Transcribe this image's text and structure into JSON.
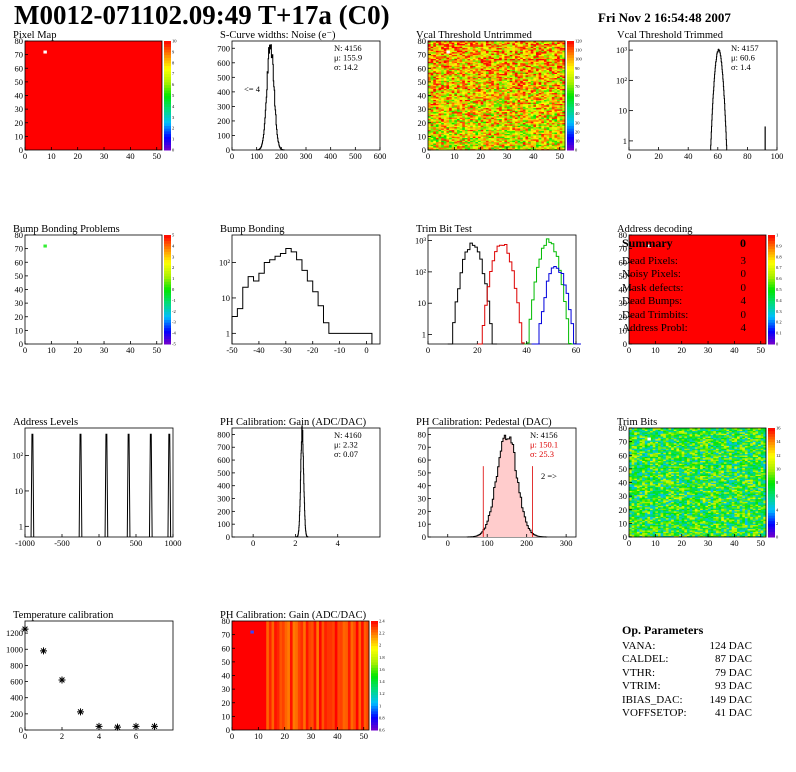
{
  "header": {
    "title": "M0012-071102.09:49 T+17a (C0)",
    "date": "Fri Nov  2 16:54:48 2007"
  },
  "summary": {
    "title": "Summary",
    "value": "0",
    "rows": [
      {
        "label": "Dead Pixels:",
        "value": "3"
      },
      {
        "label": "Noisy Pixels:",
        "value": "0"
      },
      {
        "label": "Mask defects:",
        "value": "0"
      },
      {
        "label": "Dead Bumps:",
        "value": "4"
      },
      {
        "label": "Dead Trimbits:",
        "value": "0"
      },
      {
        "label": "Address Probl:",
        "value": "4"
      }
    ]
  },
  "op_parameters": {
    "title": "Op. Parameters",
    "rows": [
      {
        "label": "VANA:",
        "value": "124 DAC"
      },
      {
        "label": "CALDEL:",
        "value": "87 DAC"
      },
      {
        "label": "VTHR:",
        "value": "79 DAC"
      },
      {
        "label": "VTRIM:",
        "value": "93 DAC"
      },
      {
        "label": "IBIAS_DAC:",
        "value": "149 DAC"
      },
      {
        "label": "VOFFSETOP:",
        "value": "41 DAC"
      }
    ]
  },
  "chart_data": [
    {
      "type": "heatmap",
      "title": "Pixel Map",
      "style": "uniform",
      "xlim": [
        0,
        52
      ],
      "ylim": [
        0,
        80
      ],
      "xticks": [
        0,
        10,
        20,
        30,
        40,
        50
      ],
      "yticks": [
        0,
        10,
        20,
        30,
        40,
        50,
        60,
        70,
        80
      ],
      "zticks": [
        0,
        1,
        2,
        3,
        4,
        5,
        6,
        7,
        8,
        9,
        10
      ],
      "color": "#ff0000",
      "spots": [
        {
          "x": 7,
          "y": 72,
          "color": "#ffffff"
        }
      ]
    },
    {
      "type": "bar",
      "title": "S-Curve widths: Noise (e⁻)",
      "xlim": [
        0,
        600
      ],
      "ylim": [
        0,
        750
      ],
      "xticks": [
        0,
        100,
        200,
        300,
        400,
        500,
        600
      ],
      "yticks": [
        0,
        100,
        200,
        300,
        400,
        500,
        600,
        700
      ],
      "peak": {
        "mean": 155.9,
        "sigma": 14.2,
        "height": 730
      },
      "stats": [
        "N: 4156",
        "μ: 155.9",
        "σ: 14.2"
      ],
      "note": "<= 4"
    },
    {
      "type": "heatmap",
      "title": "Vcal Threshold Untrimmed",
      "style": "noisy",
      "xlim": [
        0,
        52
      ],
      "ylim": [
        0,
        80
      ],
      "xticks": [
        0,
        10,
        20,
        30,
        40,
        50
      ],
      "yticks": [
        0,
        10,
        20,
        30,
        40,
        50,
        60,
        70,
        80
      ],
      "zticks": [
        0,
        10,
        20,
        30,
        40,
        50,
        60,
        70,
        80,
        90,
        100,
        110,
        120
      ],
      "spots": [
        {
          "x": 7,
          "y": 72,
          "color": "#ffffff"
        }
      ]
    },
    {
      "type": "bar",
      "title": "Vcal Threshold Trimmed",
      "log": true,
      "xlim": [
        0,
        100
      ],
      "ylim": [
        0.5,
        2000
      ],
      "xticks": [
        0,
        20,
        40,
        60,
        80,
        100
      ],
      "ytick_labels": [
        "1",
        "10",
        "10²",
        "10³"
      ],
      "peak": {
        "mean": 60.6,
        "sigma": 1.4,
        "height": 1000
      },
      "outliers": [
        {
          "x": 92,
          "y": 1
        }
      ],
      "stats": [
        "N: 4157",
        "μ: 60.6",
        "σ: 1.4"
      ]
    },
    {
      "type": "heatmap",
      "title": "Bump Bonding Problems",
      "style": "empty",
      "xlim": [
        0,
        52
      ],
      "ylim": [
        0,
        80
      ],
      "xticks": [
        0,
        10,
        20,
        30,
        40,
        50
      ],
      "yticks": [
        0,
        10,
        20,
        30,
        40,
        50,
        60,
        70,
        80
      ],
      "zticks": [
        -5,
        -4,
        -3,
        -2,
        -1,
        0,
        1,
        2,
        3,
        4,
        5
      ],
      "spots": [
        {
          "x": 7,
          "y": 72,
          "color": "#33ee33"
        }
      ]
    },
    {
      "type": "bar",
      "title": "Bump Bonding",
      "log": true,
      "xlim": [
        -50,
        5
      ],
      "ylim": [
        0.5,
        600
      ],
      "xticks": [
        -50,
        -40,
        -30,
        -20,
        -10,
        0
      ],
      "ytick_labels": [
        "1",
        "10",
        "10²"
      ],
      "bins": [
        [
          -50,
          3
        ],
        [
          -48,
          5
        ],
        [
          -46,
          20
        ],
        [
          -44,
          40
        ],
        [
          -42,
          30
        ],
        [
          -40,
          50
        ],
        [
          -38,
          100
        ],
        [
          -36,
          120
        ],
        [
          -34,
          150
        ],
        [
          -32,
          180
        ],
        [
          -30,
          250
        ],
        [
          -28,
          200
        ],
        [
          -26,
          120
        ],
        [
          -24,
          60
        ],
        [
          -22,
          30
        ],
        [
          -20,
          15
        ],
        [
          -18,
          6
        ],
        [
          -16,
          2
        ],
        [
          -14,
          1
        ],
        [
          0,
          1
        ]
      ]
    },
    {
      "type": "line",
      "title": "Trim Bit Test",
      "log": true,
      "xlim": [
        0,
        60
      ],
      "ylim": [
        0.5,
        1500
      ],
      "xticks": [
        0,
        20,
        40,
        60
      ],
      "ytick_labels": [
        "1",
        "10",
        "10²",
        "10³"
      ],
      "series": [
        {
          "color": "#000000",
          "mean": 18,
          "height": 800
        },
        {
          "color": "#dd0000",
          "mean": 30,
          "height": 800
        },
        {
          "color": "#00bb00",
          "mean": 49,
          "height": 1000
        },
        {
          "color": "#0000dd",
          "mean": 52,
          "height": 150
        }
      ]
    },
    {
      "type": "heatmap",
      "title": "Address decoding",
      "style": "uniform",
      "xlim": [
        0,
        52
      ],
      "ylim": [
        0,
        80
      ],
      "xticks": [
        0,
        10,
        20,
        30,
        40,
        50
      ],
      "yticks": [
        0,
        10,
        20,
        30,
        40,
        50,
        60,
        70,
        80
      ],
      "zticks": [
        0,
        0.1,
        0.2,
        0.3,
        0.4,
        0.5,
        0.6,
        0.7,
        0.8,
        0.9,
        1
      ],
      "color": "#ff0000",
      "spots": [
        {
          "x": 7,
          "y": 72,
          "color": "#ffffff"
        }
      ]
    },
    {
      "type": "bar",
      "title": "Address Levels",
      "log": true,
      "xlim": [
        -1000,
        1000
      ],
      "ylim": [
        0.5,
        600
      ],
      "xticks": [
        -1000,
        -500,
        0,
        500,
        1000
      ],
      "ytick_labels": [
        "1",
        "10",
        "10²"
      ],
      "peaks": [
        -900,
        -250,
        100,
        400,
        700,
        950
      ]
    },
    {
      "type": "bar",
      "title": "PH Calibration: Gain (ADC/DAC)",
      "xlim": [
        -1,
        6
      ],
      "ylim": [
        0,
        850
      ],
      "xticks": [
        0,
        2,
        4
      ],
      "yticks": [
        0,
        100,
        200,
        300,
        400,
        500,
        600,
        700,
        800
      ],
      "peak": {
        "mean": 2.32,
        "sigma": 0.07,
        "height": 820
      },
      "stats": [
        "N: 4160",
        "μ: 2.32",
        "σ: 0.07"
      ]
    },
    {
      "type": "bar",
      "title": "PH Calibration: Pedestal (DAC)",
      "xlim": [
        -50,
        325
      ],
      "ylim": [
        0,
        85
      ],
      "xticks": [
        0,
        100,
        200,
        300
      ],
      "yticks": [
        0,
        10,
        20,
        30,
        40,
        50,
        60,
        70,
        80
      ],
      "peak": {
        "mean": 150.1,
        "sigma": 25.3,
        "height": 80
      },
      "stats": [
        "N: 4156",
        "μ: 150.1",
        "σ: 25.3"
      ],
      "stat_colors": [
        "#000000",
        "#dd0000",
        "#dd0000"
      ],
      "note": "2 =>",
      "fit_lines": [
        90,
        215
      ]
    },
    {
      "type": "heatmap",
      "title": "Trim Bits",
      "style": "trim",
      "xlim": [
        0,
        52
      ],
      "ylim": [
        0,
        80
      ],
      "xticks": [
        0,
        10,
        20,
        30,
        40,
        50
      ],
      "yticks": [
        0,
        10,
        20,
        30,
        40,
        50,
        60,
        70,
        80
      ],
      "zticks": [
        0,
        2,
        4,
        6,
        8,
        10,
        12,
        14,
        16
      ],
      "spots": [
        {
          "x": 7,
          "y": 72,
          "color": "#ffffff"
        }
      ]
    },
    {
      "type": "scatter",
      "title": "Temperature calibration",
      "xlim": [
        0,
        8
      ],
      "ylim": [
        0,
        1350
      ],
      "xticks": [
        0,
        2,
        4,
        6
      ],
      "yticks": [
        0,
        200,
        400,
        600,
        800,
        1000,
        1200
      ],
      "points": [
        [
          0,
          1250
        ],
        [
          1,
          980
        ],
        [
          2,
          620
        ],
        [
          3,
          225
        ],
        [
          4,
          45
        ],
        [
          5,
          35
        ],
        [
          6,
          45
        ],
        [
          7,
          45
        ]
      ]
    },
    {
      "type": "heatmap",
      "title": "PH Calibration: Gain (ADC/DAC)",
      "style": "gain",
      "xlim": [
        0,
        52
      ],
      "ylim": [
        0,
        80
      ],
      "xticks": [
        0,
        10,
        20,
        30,
        40,
        50
      ],
      "yticks": [
        0,
        10,
        20,
        30,
        40,
        50,
        60,
        70,
        80
      ],
      "zticks": [
        0.6,
        0.8,
        1,
        1.2,
        1.4,
        1.6,
        1.8,
        2,
        2.2,
        2.4
      ],
      "spots": [
        {
          "x": 7,
          "y": 72,
          "color": "#3344ff"
        }
      ]
    }
  ]
}
